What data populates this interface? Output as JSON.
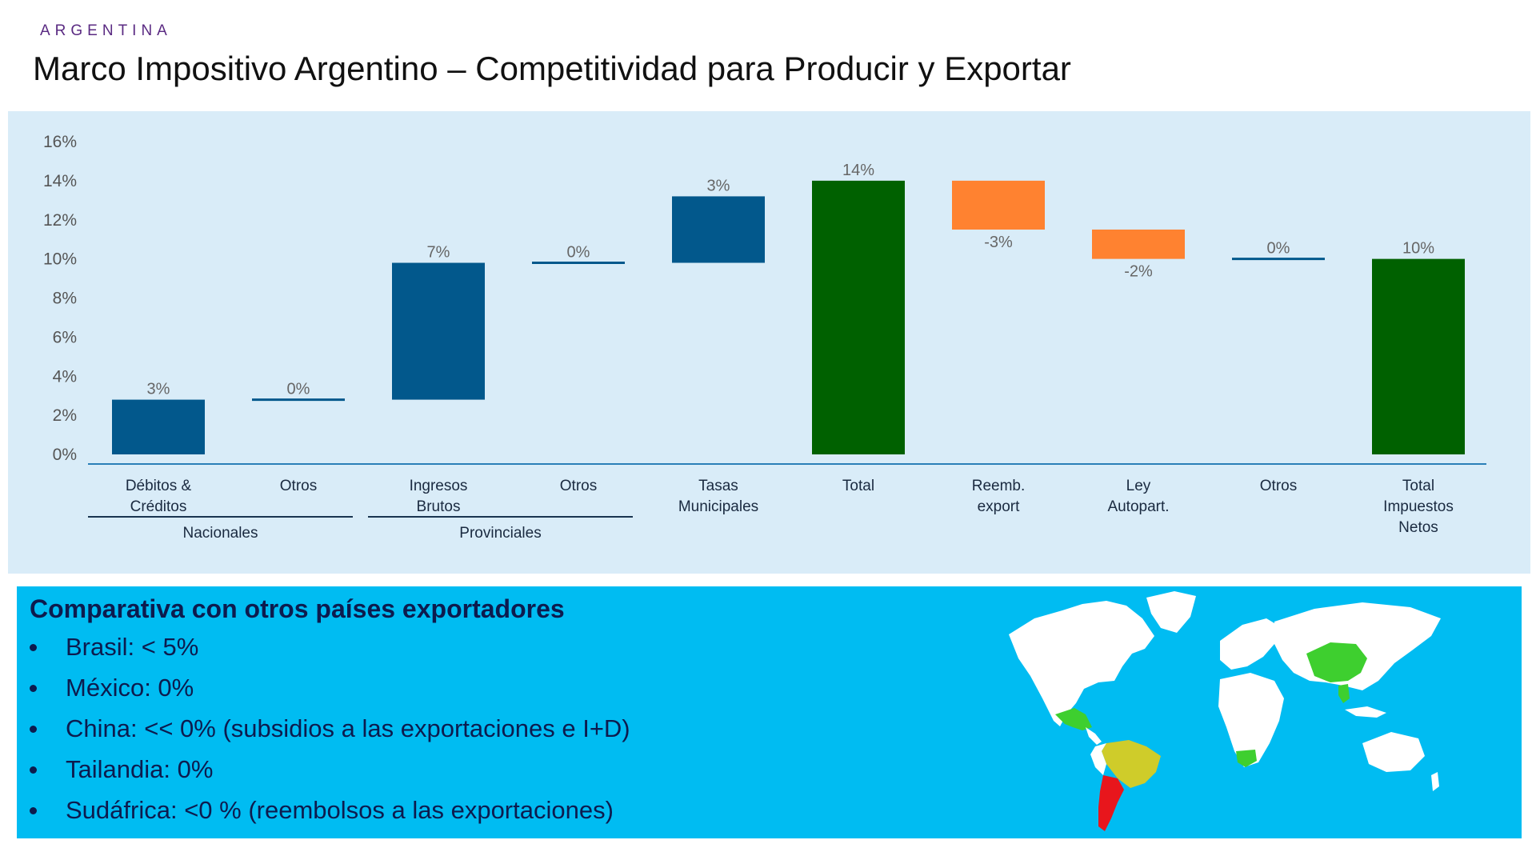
{
  "header": {
    "brand": "ARGENTINA",
    "title": "Marco Impositivo Argentino – Competitividad para Producir y Exportar"
  },
  "colors": {
    "blue": "#02588c",
    "green": "#006100",
    "orange": "#ff8230",
    "panel": "#d9ecf8",
    "axis": "#2b7fb8",
    "compare_bg": "#00bcf2",
    "map_highlight_green": "#3ecf2f",
    "map_highlight_yellow": "#cfcc2a",
    "map_highlight_red": "#e8161c"
  },
  "chart_data": {
    "type": "bar",
    "subtype": "waterfall",
    "title": "",
    "xlabel": "",
    "ylabel": "",
    "ylim": [
      0,
      16
    ],
    "yticks": [
      "0%",
      "2%",
      "4%",
      "6%",
      "8%",
      "10%",
      "12%",
      "14%",
      "16%"
    ],
    "grid": false,
    "categories": [
      {
        "label": [
          "Débitos &",
          "Créditos"
        ],
        "start": 0,
        "end": 2.8,
        "value_label": "3%",
        "kind": "increase",
        "color": "#02588c"
      },
      {
        "label": [
          "Otros"
        ],
        "start": 2.8,
        "end": 2.8,
        "value_label": "0%",
        "kind": "increase",
        "color": "#02588c"
      },
      {
        "label": [
          "Ingresos",
          "Brutos"
        ],
        "start": 2.8,
        "end": 9.8,
        "value_label": "7%",
        "kind": "increase",
        "color": "#02588c"
      },
      {
        "label": [
          "Otros"
        ],
        "start": 9.8,
        "end": 9.8,
        "value_label": "0%",
        "kind": "increase",
        "color": "#02588c"
      },
      {
        "label": [
          "Tasas",
          "Municipales"
        ],
        "start": 9.8,
        "end": 13.2,
        "value_label": "3%",
        "kind": "increase",
        "color": "#02588c"
      },
      {
        "label": [
          "Total"
        ],
        "start": 0,
        "end": 14.0,
        "value_label": "14%",
        "kind": "total",
        "color": "#006100"
      },
      {
        "label": [
          "Reemb.",
          "export"
        ],
        "start": 14.0,
        "end": 11.5,
        "value_label": "-3%",
        "kind": "decrease",
        "color": "#ff8230"
      },
      {
        "label": [
          "Ley",
          "Autopart."
        ],
        "start": 11.5,
        "end": 10.0,
        "value_label": "-2%",
        "kind": "decrease",
        "color": "#ff8230"
      },
      {
        "label": [
          "Otros"
        ],
        "start": 10.0,
        "end": 10.0,
        "value_label": "0%",
        "kind": "decrease",
        "color": "#02588c"
      },
      {
        "label": [
          "Total",
          "Impuestos",
          "Netos"
        ],
        "start": 0,
        "end": 10.0,
        "value_label": "10%",
        "kind": "total",
        "color": "#006100"
      }
    ],
    "groups": [
      {
        "label": "Nacionales",
        "from": 0,
        "to": 1
      },
      {
        "label": "Provinciales",
        "from": 2,
        "to": 3
      }
    ]
  },
  "comparison": {
    "title": "Comparativa con otros países exportadores",
    "items": [
      "Brasil: < 5%",
      "México: 0%",
      "China: << 0% (subsidios a las exportaciones e I+D)",
      "Tailandia: 0%",
      "Sudáfrica: <0 % (reembolsos a las exportaciones)"
    ]
  }
}
